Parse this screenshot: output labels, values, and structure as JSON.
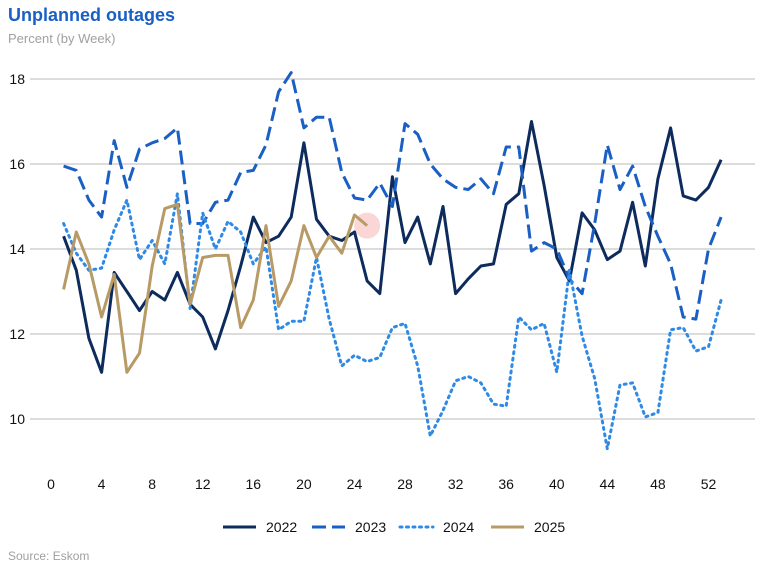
{
  "header": {
    "title": "Unplanned outages",
    "subtitle": "Percent (by Week)"
  },
  "footer": {
    "source": "Source: Eskom"
  },
  "chart_data": {
    "type": "line",
    "title": "Unplanned outages",
    "subtitle": "Percent (by Week)",
    "xlabel": "",
    "ylabel": "",
    "xlim": [
      0,
      54
    ],
    "ylim": [
      9,
      18.5
    ],
    "xticks": [
      0,
      4,
      8,
      12,
      16,
      20,
      24,
      28,
      32,
      36,
      40,
      44,
      48,
      52
    ],
    "yticks": [
      10,
      12,
      14,
      16,
      18
    ],
    "grid": "horizontal",
    "legend_position": "bottom",
    "highlight": {
      "series": "2025",
      "x": 25,
      "y": 14.55,
      "color": "#f9cfcf"
    },
    "series": [
      {
        "name": "2022",
        "color": "#0d2b5c",
        "dash": "solid",
        "x": [
          1,
          2,
          3,
          4,
          5,
          6,
          7,
          8,
          9,
          10,
          11,
          12,
          13,
          14,
          15,
          16,
          17,
          18,
          19,
          20,
          21,
          22,
          23,
          24,
          25,
          26,
          27,
          28,
          29,
          30,
          31,
          32,
          33,
          34,
          35,
          36,
          37,
          38,
          39,
          40,
          41,
          42,
          43,
          44,
          45,
          46,
          47,
          48,
          49,
          50,
          51,
          52,
          53
        ],
        "y": [
          14.3,
          13.5,
          11.9,
          11.1,
          13.45,
          13.0,
          12.55,
          13.0,
          12.8,
          13.45,
          12.7,
          12.4,
          11.65,
          12.55,
          13.6,
          14.75,
          14.15,
          14.3,
          14.75,
          16.5,
          14.7,
          14.3,
          14.2,
          14.4,
          13.25,
          12.95,
          15.7,
          14.15,
          14.75,
          13.65,
          15.0,
          12.95,
          13.3,
          13.6,
          13.65,
          15.05,
          15.3,
          17.0,
          15.5,
          13.8,
          13.25,
          14.85,
          14.45,
          13.75,
          13.95,
          15.1,
          13.6,
          15.65,
          16.85,
          15.25,
          15.15,
          15.45,
          16.1
        ]
      },
      {
        "name": "2023",
        "color": "#1a5fc4",
        "dash": "long",
        "x": [
          1,
          2,
          3,
          4,
          5,
          6,
          7,
          8,
          9,
          10,
          11,
          12,
          13,
          14,
          15,
          16,
          17,
          18,
          19,
          20,
          21,
          22,
          23,
          24,
          25,
          26,
          27,
          28,
          29,
          30,
          31,
          32,
          33,
          34,
          35,
          36,
          37,
          38,
          39,
          40,
          41,
          42,
          43,
          44,
          45,
          46,
          47,
          48,
          49,
          50,
          51,
          52,
          53
        ],
        "y": [
          15.95,
          15.85,
          15.15,
          14.75,
          16.55,
          15.45,
          16.35,
          16.5,
          16.6,
          16.85,
          14.6,
          14.6,
          15.1,
          15.15,
          15.8,
          15.85,
          16.45,
          17.7,
          18.15,
          16.85,
          17.1,
          17.1,
          15.8,
          15.2,
          15.15,
          15.55,
          15.0,
          16.95,
          16.7,
          16.0,
          15.65,
          15.45,
          15.4,
          15.65,
          15.3,
          16.4,
          16.4,
          13.95,
          14.15,
          14.0,
          13.3,
          12.95,
          14.6,
          16.45,
          15.4,
          15.95,
          15.0,
          14.3,
          13.65,
          12.4,
          12.35,
          14.0,
          14.75
        ]
      },
      {
        "name": "2024",
        "color": "#2f8ae6",
        "dash": "dotted",
        "x": [
          1,
          2,
          3,
          4,
          5,
          6,
          7,
          8,
          9,
          10,
          11,
          12,
          13,
          14,
          15,
          16,
          17,
          18,
          19,
          20,
          21,
          22,
          23,
          24,
          25,
          26,
          27,
          28,
          29,
          30,
          31,
          32,
          33,
          34,
          35,
          36,
          37,
          38,
          39,
          40,
          41,
          42,
          43,
          44,
          45,
          46,
          47,
          48,
          49,
          50,
          51,
          52,
          53
        ],
        "y": [
          14.6,
          13.9,
          13.5,
          13.55,
          14.45,
          15.15,
          13.75,
          14.2,
          13.65,
          15.3,
          12.6,
          14.85,
          14.0,
          14.65,
          14.4,
          13.65,
          14.05,
          12.1,
          12.3,
          12.3,
          13.8,
          12.35,
          11.25,
          11.5,
          11.35,
          11.45,
          12.15,
          12.25,
          11.25,
          9.6,
          10.2,
          10.9,
          11.0,
          10.85,
          10.35,
          10.3,
          12.4,
          12.1,
          12.25,
          11.1,
          13.5,
          11.95,
          10.95,
          9.3,
          10.8,
          10.85,
          10.05,
          10.15,
          12.1,
          12.15,
          11.6,
          11.7,
          12.8
        ]
      },
      {
        "name": "2025",
        "color": "#b89a66",
        "dash": "solid",
        "x": [
          1,
          2,
          3,
          4,
          5,
          6,
          7,
          8,
          9,
          10,
          11,
          12,
          13,
          14,
          15,
          16,
          17,
          18,
          19,
          20,
          21,
          22,
          23,
          24,
          25
        ],
        "y": [
          13.05,
          14.4,
          13.65,
          12.4,
          13.4,
          11.1,
          11.55,
          13.6,
          14.95,
          15.05,
          12.7,
          13.8,
          13.85,
          13.85,
          12.15,
          12.8,
          14.55,
          12.65,
          13.25,
          14.55,
          13.8,
          14.3,
          13.9,
          14.8,
          14.55
        ]
      }
    ]
  }
}
